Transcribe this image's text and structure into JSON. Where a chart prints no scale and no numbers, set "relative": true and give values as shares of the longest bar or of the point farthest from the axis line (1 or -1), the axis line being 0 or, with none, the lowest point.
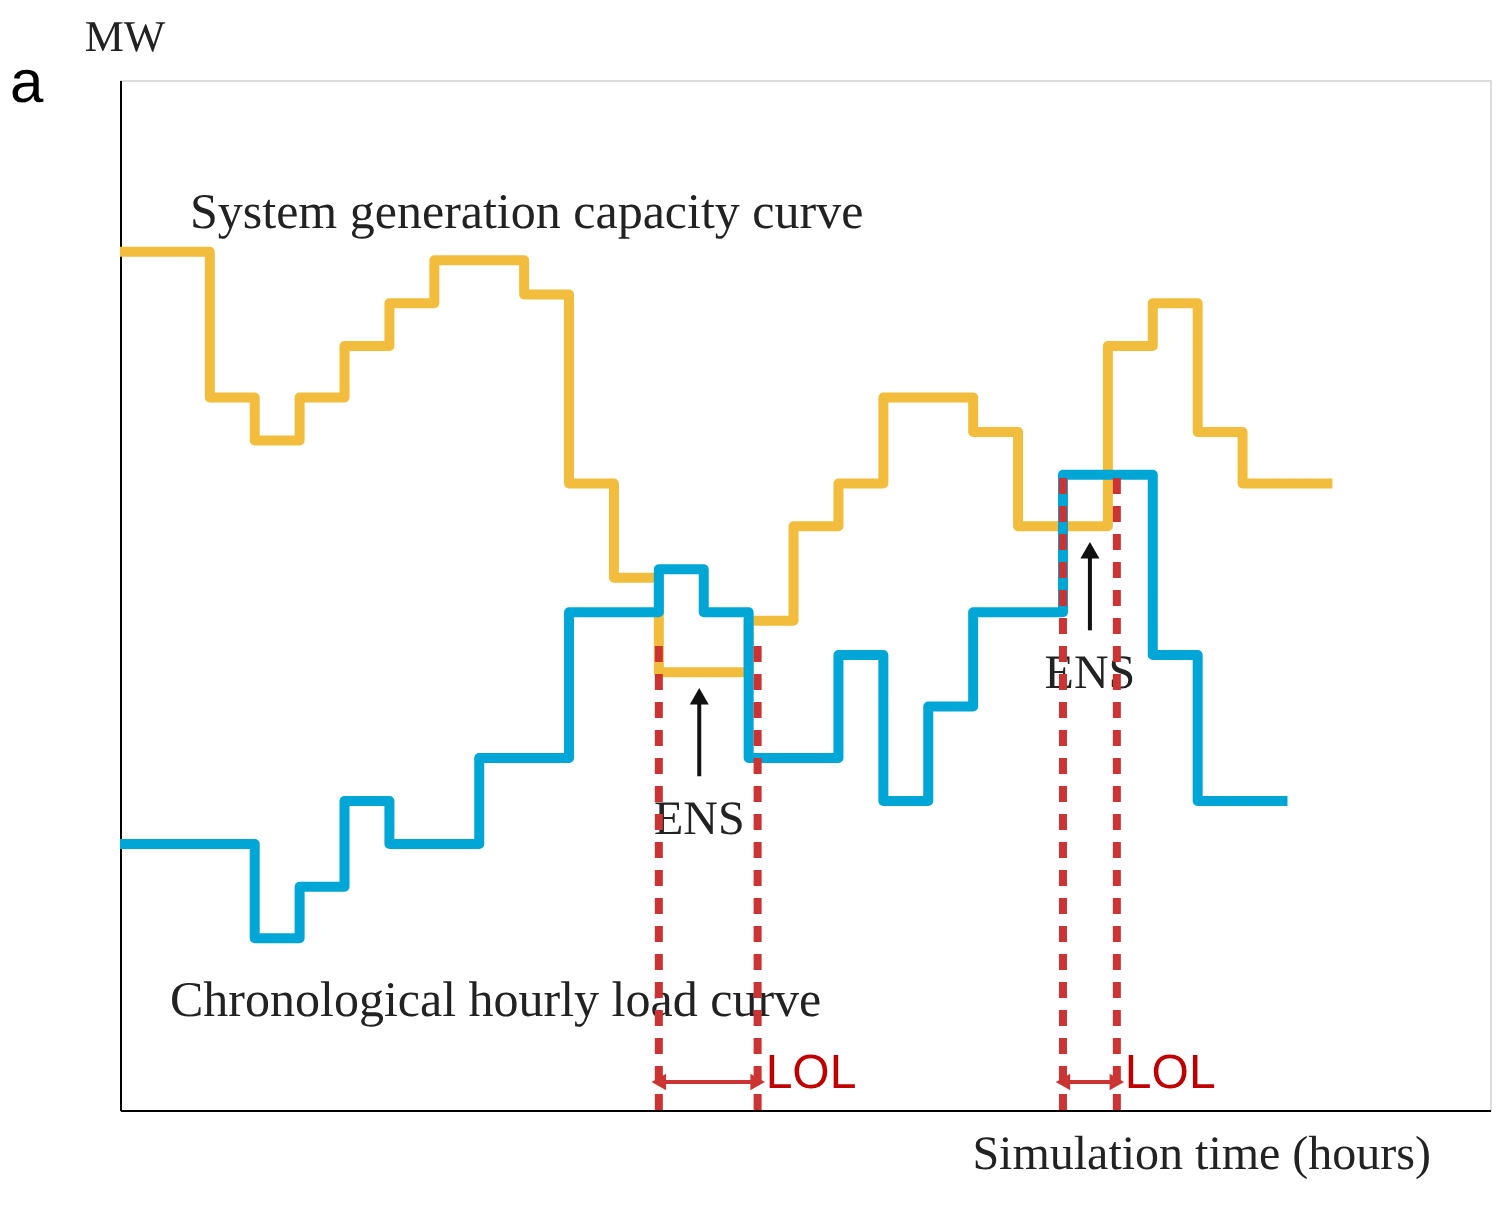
{
  "chart_data": {
    "type": "step",
    "relative": true,
    "xlabel": "Simulation time (hours)",
    "ylabel": "MW",
    "categories": [
      null,
      null,
      null,
      null,
      null,
      null,
      null,
      null,
      null,
      null,
      null,
      null,
      null,
      null,
      null,
      null,
      null,
      null,
      null,
      null,
      null,
      null,
      null,
      null,
      null,
      null,
      null,
      null
    ],
    "line_style": "solid",
    "series": [
      {
        "name": "System generation capacity curve",
        "color": "#f2bd3c",
        "values": [
          1.0,
          1.0,
          0.83,
          0.78,
          0.83,
          0.89,
          0.94,
          0.99,
          0.99,
          0.95,
          0.73,
          0.62,
          0.51,
          0.51,
          0.57,
          0.68,
          0.73,
          0.83,
          0.83,
          0.79,
          0.68,
          0.68,
          0.89,
          0.94,
          0.79,
          0.73,
          0.73,
          0.73
        ]
      },
      {
        "name": "Chronological hourly load curve",
        "color": "#00a6d6",
        "values": [
          0.31,
          0.31,
          0.31,
          0.2,
          0.26,
          0.36,
          0.31,
          0.31,
          0.41,
          0.41,
          0.58,
          0.58,
          0.63,
          0.58,
          0.41,
          0.41,
          0.53,
          0.36,
          0.47,
          0.58,
          0.58,
          0.74,
          0.74,
          0.53,
          0.36,
          0.36,
          0.36,
          null
        ]
      }
    ],
    "annotations": [
      "a",
      "ENS",
      "ENS",
      "LOL",
      "LOL"
    ]
  }
}
